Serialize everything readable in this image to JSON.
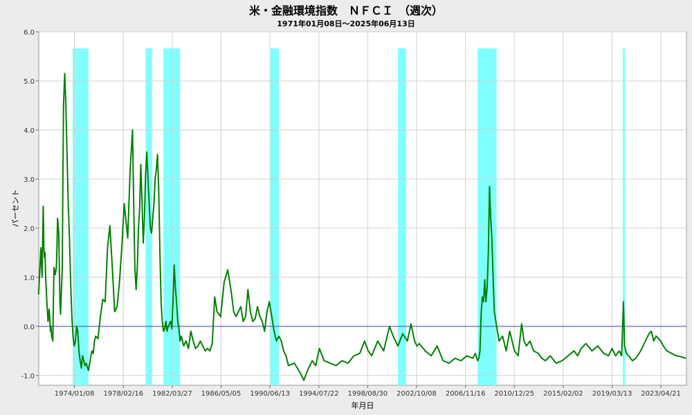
{
  "chart_data": {
    "type": "line",
    "title": "米・金融環境指数　ＮＦＣＩ　（週次）",
    "subtitle": "1971年01月08日～2025年06月13日",
    "xlabel": "年月日",
    "ylabel": "パーセント",
    "xlim": [
      1971.02,
      2025.45
    ],
    "ylim": [
      -1.2,
      6.0
    ],
    "y_ticks": [
      -1.0,
      0.0,
      1.0,
      2.0,
      3.0,
      4.0,
      5.0,
      6.0
    ],
    "y_tick_labels": [
      "-1.0",
      "0.0",
      "1.0",
      "2.0",
      "3.0",
      "4.0",
      "5.0",
      "6.0"
    ],
    "x_ticks": [
      {
        "label": "1974/01/08",
        "x": 1974.02
      },
      {
        "label": "1978/02/16",
        "x": 1978.13
      },
      {
        "label": "1982/03/27",
        "x": 1982.24
      },
      {
        "label": "1986/05/05",
        "x": 1986.34
      },
      {
        "label": "1990/06/13",
        "x": 1990.45
      },
      {
        "label": "1994/07/22",
        "x": 1994.56
      },
      {
        "label": "1998/08/30",
        "x": 1998.66
      },
      {
        "label": "2002/10/08",
        "x": 2002.77
      },
      {
        "label": "2006/11/16",
        "x": 2006.88
      },
      {
        "label": "2010/12/25",
        "x": 2010.98
      },
      {
        "label": "2015/02/02",
        "x": 2015.09
      },
      {
        "label": "2019/03/13",
        "x": 2019.2
      },
      {
        "label": "2023/04/21",
        "x": 2023.3
      }
    ],
    "reference_line": {
      "y": 0.0,
      "color": "#4444cc"
    },
    "recession_bands": [
      {
        "start": 1973.87,
        "end": 1975.2
      },
      {
        "start": 1980.0,
        "end": 1980.55
      },
      {
        "start": 1981.5,
        "end": 1982.9
      },
      {
        "start": 1990.5,
        "end": 1991.2
      },
      {
        "start": 2001.2,
        "end": 2001.9
      },
      {
        "start": 2007.9,
        "end": 2009.5
      },
      {
        "start": 2020.1,
        "end": 2020.3
      }
    ],
    "band_color": "#80ffff",
    "series_color": "#008000",
    "grid": true,
    "series": [
      {
        "x": [
          1971.0,
          1971.1,
          1971.2,
          1971.3,
          1971.35,
          1971.4,
          1971.45,
          1971.5,
          1971.55,
          1971.6,
          1971.7,
          1971.8,
          1971.9,
          1972.0,
          1972.05,
          1972.1,
          1972.2,
          1972.25,
          1972.3,
          1972.4,
          1972.5,
          1972.55,
          1972.6,
          1972.7,
          1972.8,
          1972.85,
          1973.0,
          1973.05,
          1973.1,
          1973.2,
          1973.3,
          1973.4,
          1973.5,
          1973.6,
          1973.7,
          1973.8,
          1973.9,
          1974.0,
          1974.1,
          1974.2,
          1974.3,
          1974.4,
          1974.5,
          1974.6,
          1974.7,
          1974.8,
          1974.9,
          1975.0,
          1975.2,
          1975.4,
          1975.5,
          1975.6,
          1975.7,
          1975.8,
          1976.0,
          1976.2,
          1976.4,
          1976.6,
          1976.8,
          1977.0,
          1977.2,
          1977.4,
          1977.6,
          1977.8,
          1978.0,
          1978.2,
          1978.5,
          1978.7,
          1978.9,
          1979.0,
          1979.1,
          1979.2,
          1979.3,
          1979.4,
          1979.5,
          1979.6,
          1979.7,
          1979.8,
          1979.9,
          1980.0,
          1980.1,
          1980.2,
          1980.3,
          1980.4,
          1980.5,
          1980.6,
          1980.7,
          1980.8,
          1980.9,
          1981.0,
          1981.1,
          1981.2,
          1981.3,
          1981.4,
          1981.5,
          1981.6,
          1981.7,
          1981.8,
          1981.9,
          1982.0,
          1982.1,
          1982.2,
          1982.3,
          1982.4,
          1982.5,
          1982.6,
          1982.7,
          1982.8,
          1982.9,
          1983.0,
          1983.2,
          1983.4,
          1983.6,
          1983.8,
          1984.0,
          1984.2,
          1984.4,
          1984.6,
          1984.8,
          1985.0,
          1985.2,
          1985.4,
          1985.6,
          1985.8,
          1986.0,
          1986.3,
          1986.6,
          1986.9,
          1987.2,
          1987.4,
          1987.6,
          1987.8,
          1988.0,
          1988.2,
          1988.4,
          1988.6,
          1988.8,
          1989.0,
          1989.2,
          1989.4,
          1989.6,
          1989.8,
          1990.0,
          1990.2,
          1990.4,
          1990.6,
          1990.8,
          1991.0,
          1991.2,
          1991.4,
          1991.6,
          1991.8,
          1992.0,
          1992.5,
          1993.0,
          1993.3,
          1993.6,
          1994.0,
          1994.3,
          1994.6,
          1995.0,
          1995.5,
          1996.0,
          1996.5,
          1997.0,
          1997.5,
          1998.0,
          1998.4,
          1998.7,
          1999.0,
          1999.5,
          2000.0,
          2000.5,
          2000.8,
          2001.2,
          2001.6,
          2002.0,
          2002.3,
          2002.6,
          2002.8,
          2003.0,
          2003.5,
          2004.0,
          2004.5,
          2005.0,
          2005.5,
          2006.0,
          2006.5,
          2007.0,
          2007.5,
          2007.7,
          2007.9,
          2008.0,
          2008.1,
          2008.2,
          2008.3,
          2008.4,
          2008.5,
          2008.6,
          2008.7,
          2008.8,
          2008.9,
          2009.0,
          2009.1,
          2009.2,
          2009.3,
          2009.5,
          2009.7,
          2010.0,
          2010.3,
          2010.6,
          2011.0,
          2011.3,
          2011.6,
          2011.8,
          2012.0,
          2012.3,
          2012.6,
          2013.0,
          2013.3,
          2013.6,
          2014.0,
          2014.5,
          2015.0,
          2015.5,
          2016.0,
          2016.3,
          2016.6,
          2017.0,
          2017.5,
          2018.0,
          2018.5,
          2018.9,
          2019.2,
          2019.5,
          2019.8,
          2020.0,
          2020.15,
          2020.25,
          2020.4,
          2020.6,
          2020.9,
          2021.2,
          2021.6,
          2022.0,
          2022.3,
          2022.5,
          2022.7,
          2022.9,
          2023.1,
          2023.3,
          2023.5,
          2023.8,
          2024.2,
          2024.6,
          2025.0,
          2025.4
        ],
        "y": [
          0.65,
          1.1,
          1.6,
          1.0,
          1.8,
          2.45,
          1.6,
          1.4,
          1.5,
          1.0,
          0.5,
          0.1,
          0.35,
          -0.1,
          0.0,
          -0.2,
          -0.3,
          0.5,
          1.2,
          1.05,
          1.2,
          1.6,
          2.2,
          1.9,
          0.5,
          0.25,
          1.2,
          3.0,
          4.5,
          5.15,
          4.5,
          3.5,
          2.5,
          1.8,
          0.9,
          0.2,
          -0.2,
          -0.4,
          -0.3,
          0.0,
          -0.1,
          -0.5,
          -0.7,
          -0.85,
          -0.6,
          -0.7,
          -0.8,
          -0.75,
          -0.9,
          -0.6,
          -0.5,
          -0.55,
          -0.3,
          -0.2,
          -0.25,
          0.2,
          0.55,
          0.5,
          1.6,
          2.05,
          1.2,
          0.3,
          0.4,
          0.9,
          1.6,
          2.5,
          1.8,
          3.2,
          4.0,
          2.5,
          1.2,
          0.75,
          1.2,
          2.0,
          2.4,
          3.3,
          2.5,
          1.7,
          2.2,
          3.1,
          3.55,
          3.0,
          2.5,
          2.0,
          1.9,
          2.2,
          2.5,
          3.0,
          3.2,
          3.5,
          2.8,
          1.5,
          0.5,
          0.1,
          -0.1,
          -0.05,
          0.1,
          -0.1,
          0.0,
          0.05,
          0.1,
          -0.05,
          0.5,
          1.25,
          0.8,
          0.5,
          0.1,
          -0.05,
          -0.3,
          -0.2,
          -0.4,
          -0.3,
          -0.45,
          -0.1,
          -0.3,
          -0.45,
          -0.4,
          -0.3,
          -0.4,
          -0.5,
          -0.45,
          -0.5,
          -0.35,
          0.6,
          0.3,
          0.2,
          0.9,
          1.15,
          0.7,
          0.3,
          0.2,
          0.3,
          0.4,
          0.1,
          0.2,
          0.75,
          0.3,
          0.1,
          0.15,
          0.4,
          0.2,
          0.1,
          -0.1,
          0.3,
          0.5,
          0.2,
          -0.1,
          -0.3,
          -0.2,
          -0.3,
          -0.5,
          -0.6,
          -0.8,
          -0.75,
          -0.95,
          -1.1,
          -0.9,
          -0.7,
          -0.8,
          -0.45,
          -0.7,
          -0.75,
          -0.8,
          -0.7,
          -0.75,
          -0.6,
          -0.55,
          -0.3,
          -0.5,
          -0.6,
          -0.3,
          -0.5,
          0.0,
          -0.2,
          -0.4,
          -0.15,
          -0.3,
          0.05,
          -0.3,
          -0.4,
          -0.35,
          -0.5,
          -0.6,
          -0.4,
          -0.7,
          -0.75,
          -0.65,
          -0.7,
          -0.6,
          -0.65,
          -0.55,
          -0.7,
          -0.65,
          -0.5,
          0.3,
          0.6,
          0.5,
          0.95,
          0.5,
          0.8,
          1.5,
          2.85,
          2.2,
          1.8,
          1.0,
          0.3,
          0.0,
          -0.3,
          -0.2,
          -0.5,
          -0.1,
          -0.5,
          -0.6,
          0.05,
          -0.3,
          -0.4,
          -0.3,
          -0.5,
          -0.55,
          -0.65,
          -0.7,
          -0.6,
          -0.75,
          -0.7,
          -0.6,
          -0.5,
          -0.6,
          -0.45,
          -0.35,
          -0.5,
          -0.4,
          -0.55,
          -0.6,
          -0.45,
          -0.6,
          -0.5,
          -0.6,
          0.5,
          -0.4,
          -0.55,
          -0.6,
          -0.7,
          -0.65,
          -0.5,
          -0.3,
          -0.15,
          -0.1,
          -0.3,
          -0.2,
          -0.25,
          -0.3,
          -0.4,
          -0.5,
          -0.55,
          -0.6,
          -0.62,
          -0.65
        ]
      }
    ]
  }
}
